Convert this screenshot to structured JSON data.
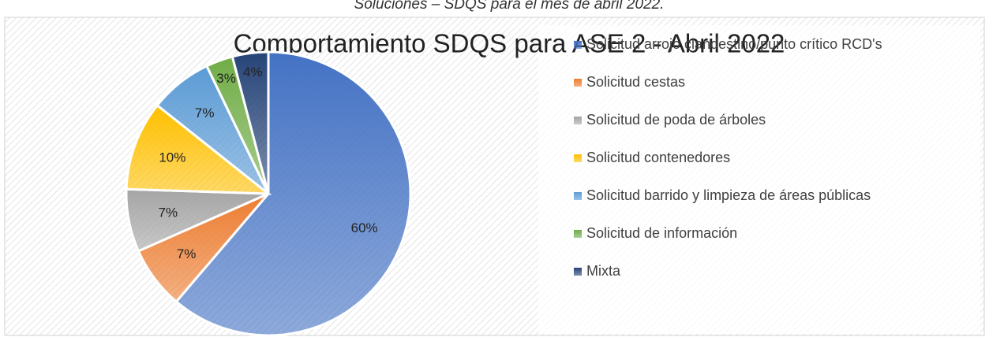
{
  "caption": "Soluciones – SDQS para el mes de abril 2022.",
  "chart_data": {
    "type": "pie",
    "title": "Comportamiento SDQS para ASE 2 - Abril 2022",
    "categories": [
      "Solicitud arrojo clandestino/punto crítico RCD's",
      "Solicitud cestas",
      "Solicitud de poda de árboles",
      "Solicitud contenedores",
      "Solicitud barrido y limpieza de áreas públicas",
      "Solicitud de información",
      "Mixta"
    ],
    "values": [
      60,
      7,
      7,
      10,
      7,
      3,
      4
    ],
    "value_labels": [
      "60%",
      "7%",
      "7%",
      "10%",
      "7%",
      "3%",
      "4%"
    ],
    "colors": [
      "#4472c4",
      "#ed7d31",
      "#a5a5a5",
      "#ffc000",
      "#5b9bd5",
      "#70ad47",
      "#264478"
    ],
    "legend": "right"
  }
}
